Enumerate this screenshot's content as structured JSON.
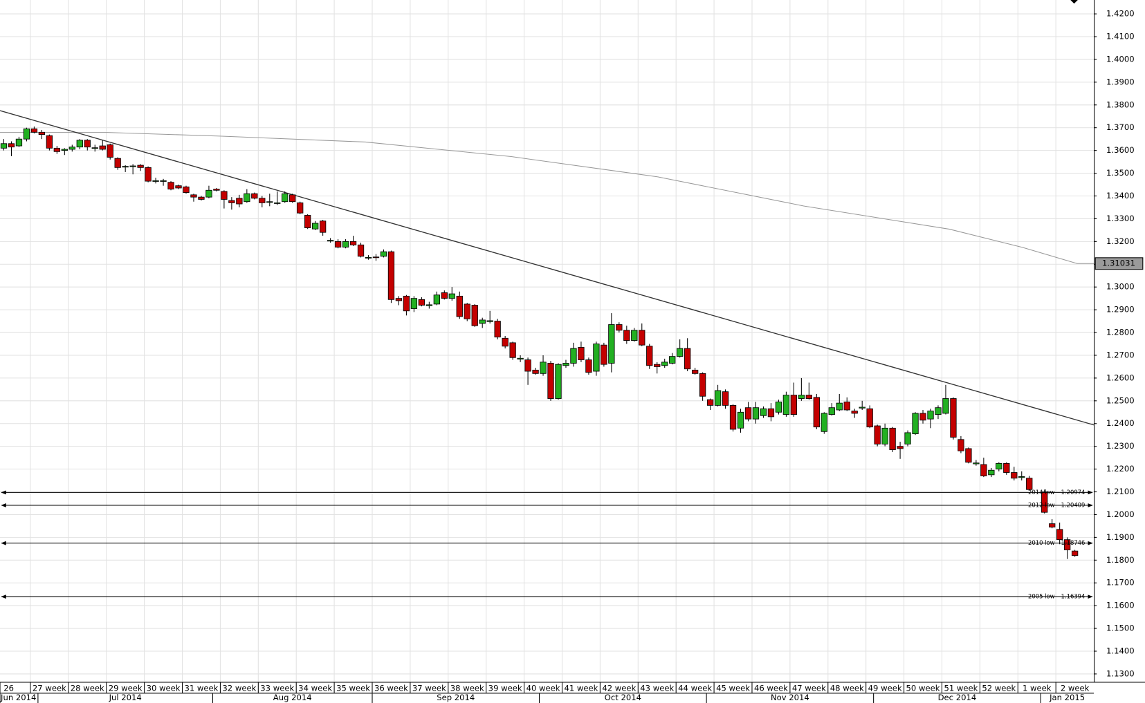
{
  "chart_data": {
    "type": "candlestick",
    "up_color": "#22b022",
    "down_color": "#c40000",
    "grid": true,
    "xlim": [
      -0.5,
      143.5
    ],
    "ylim": [
      1.1265,
      1.4261
    ],
    "yticks": [
      {
        "value": 1.13,
        "label": "1.1300"
      },
      {
        "value": 1.14,
        "label": "1.1400"
      },
      {
        "value": 1.15,
        "label": "1.1500"
      },
      {
        "value": 1.16,
        "label": "1.1600"
      },
      {
        "value": 1.17,
        "label": "1.1700"
      },
      {
        "value": 1.18,
        "label": "1.1800"
      },
      {
        "value": 1.19,
        "label": "1.1900"
      },
      {
        "value": 1.2,
        "label": "1.2000"
      },
      {
        "value": 1.21,
        "label": "1.2100"
      },
      {
        "value": 1.22,
        "label": "1.2200"
      },
      {
        "value": 1.23,
        "label": "1.2300"
      },
      {
        "value": 1.24,
        "label": "1.2400"
      },
      {
        "value": 1.25,
        "label": "1.2500"
      },
      {
        "value": 1.26,
        "label": "1.2600"
      },
      {
        "value": 1.27,
        "label": "1.2700"
      },
      {
        "value": 1.28,
        "label": "1.2800"
      },
      {
        "value": 1.29,
        "label": "1.2900"
      },
      {
        "value": 1.3,
        "label": "1.3000"
      },
      {
        "value": 1.31,
        "label": "1.3100"
      },
      {
        "value": 1.32,
        "label": "1.3200"
      },
      {
        "value": 1.33,
        "label": "1.3300"
      },
      {
        "value": 1.34,
        "label": "1.3400"
      },
      {
        "value": 1.35,
        "label": "1.3500"
      },
      {
        "value": 1.36,
        "label": "1.3600"
      },
      {
        "value": 1.37,
        "label": "1.3700"
      },
      {
        "value": 1.38,
        "label": "1.3800"
      },
      {
        "value": 1.39,
        "label": "1.3900"
      },
      {
        "value": 1.4,
        "label": "1.4000"
      },
      {
        "value": 1.41,
        "label": "1.4100"
      },
      {
        "value": 1.42,
        "label": "1.4200"
      }
    ],
    "xticks": [
      {
        "value": -0.5,
        "label": "26"
      },
      {
        "value": 3.5,
        "label": "27 week"
      },
      {
        "value": 8.5,
        "label": "28 week"
      },
      {
        "value": 13.5,
        "label": "29 week"
      },
      {
        "value": 18.5,
        "label": "30 week"
      },
      {
        "value": 23.5,
        "label": "31 week"
      },
      {
        "value": 28.5,
        "label": "32 week"
      },
      {
        "value": 33.5,
        "label": "33 week"
      },
      {
        "value": 38.5,
        "label": "34 week"
      },
      {
        "value": 43.5,
        "label": "35 week"
      },
      {
        "value": 48.5,
        "label": "36 week"
      },
      {
        "value": 53.5,
        "label": "37 week"
      },
      {
        "value": 58.5,
        "label": "38 week"
      },
      {
        "value": 63.5,
        "label": "39 week"
      },
      {
        "value": 68.5,
        "label": "40 week"
      },
      {
        "value": 73.5,
        "label": "41 week"
      },
      {
        "value": 78.5,
        "label": "42 week"
      },
      {
        "value": 83.5,
        "label": "43 week"
      },
      {
        "value": 88.5,
        "label": "44 week"
      },
      {
        "value": 93.5,
        "label": "45 week"
      },
      {
        "value": 98.5,
        "label": "46 week"
      },
      {
        "value": 103.5,
        "label": "47 week"
      },
      {
        "value": 108.5,
        "label": "48 week"
      },
      {
        "value": 113.5,
        "label": "49 week"
      },
      {
        "value": 118.5,
        "label": "50 week"
      },
      {
        "value": 123.5,
        "label": "51 week"
      },
      {
        "value": 128.5,
        "label": "52 week"
      },
      {
        "value": 133.5,
        "label": "1 week"
      },
      {
        "value": 138.5,
        "label": "2 week"
      }
    ],
    "x_month_ticks": [
      {
        "value": -0.5,
        "label": "Jun 2014"
      },
      {
        "value": 4.5,
        "label": "Jul 2014"
      },
      {
        "value": 27.5,
        "label": "Aug 2014"
      },
      {
        "value": 48.5,
        "label": "Sep 2014"
      },
      {
        "value": 70.5,
        "label": "Oct 2014"
      },
      {
        "value": 92.5,
        "label": "Nov 2014"
      },
      {
        "value": 114.5,
        "label": "Dec 2014"
      },
      {
        "value": 136.5,
        "label": "Jan 2015"
      }
    ],
    "x": [
      0,
      1,
      2,
      3,
      4,
      5,
      6,
      7,
      8,
      9,
      10,
      11,
      12,
      13,
      14,
      15,
      16,
      17,
      18,
      19,
      20,
      21,
      22,
      23,
      24,
      25,
      26,
      27,
      28,
      29,
      30,
      31,
      32,
      33,
      34,
      35,
      36,
      37,
      38,
      39,
      40,
      41,
      42,
      43,
      44,
      45,
      46,
      47,
      48,
      49,
      50,
      51,
      52,
      53,
      54,
      55,
      56,
      57,
      58,
      59,
      60,
      61,
      62,
      63,
      64,
      65,
      66,
      67,
      68,
      69,
      70,
      71,
      72,
      73,
      74,
      75,
      76,
      77,
      78,
      79,
      80,
      81,
      82,
      83,
      84,
      85,
      86,
      87,
      88,
      89,
      90,
      91,
      92,
      93,
      94,
      95,
      96,
      97,
      98,
      99,
      100,
      101,
      102,
      103,
      104,
      105,
      106,
      107,
      108,
      109,
      110,
      111,
      112,
      113,
      114,
      115,
      116,
      117,
      118,
      119,
      120,
      121,
      122,
      123,
      124,
      125,
      126,
      127,
      128,
      129,
      130,
      131,
      132,
      133,
      134,
      135,
      137,
      138,
      139,
      140,
      141
    ],
    "ohlc": [
      [
        1.361,
        1.365,
        1.36,
        1.363
      ],
      [
        1.363,
        1.364,
        1.3575,
        1.3615
      ],
      [
        1.362,
        1.366,
        1.3615,
        1.365
      ],
      [
        1.365,
        1.37,
        1.364,
        1.3695
      ],
      [
        1.3695,
        1.3705,
        1.3675,
        1.368
      ],
      [
        1.368,
        1.369,
        1.365,
        1.367
      ],
      [
        1.3665,
        1.367,
        1.36,
        1.361
      ],
      [
        1.361,
        1.362,
        1.3585,
        1.3595
      ],
      [
        1.36,
        1.361,
        1.358,
        1.3605
      ],
      [
        1.3605,
        1.3625,
        1.3595,
        1.3615
      ],
      [
        1.3615,
        1.365,
        1.3605,
        1.3645
      ],
      [
        1.3645,
        1.365,
        1.36,
        1.3615
      ],
      [
        1.361,
        1.3625,
        1.3595,
        1.3612
      ],
      [
        1.362,
        1.3645,
        1.36,
        1.3605
      ],
      [
        1.3625,
        1.363,
        1.356,
        1.357
      ],
      [
        1.3565,
        1.357,
        1.3515,
        1.3525
      ],
      [
        1.3528,
        1.3535,
        1.3505,
        1.353
      ],
      [
        1.353,
        1.354,
        1.3495,
        1.3532
      ],
      [
        1.3535,
        1.354,
        1.351,
        1.3525
      ],
      [
        1.3525,
        1.353,
        1.346,
        1.3465
      ],
      [
        1.3465,
        1.348,
        1.3455,
        1.3467
      ],
      [
        1.3465,
        1.3475,
        1.3445,
        1.3467
      ],
      [
        1.346,
        1.3465,
        1.3425,
        1.343
      ],
      [
        1.3445,
        1.345,
        1.343,
        1.3435
      ],
      [
        1.344,
        1.3445,
        1.341,
        1.3415
      ],
      [
        1.3405,
        1.341,
        1.3375,
        1.3395
      ],
      [
        1.3395,
        1.34,
        1.338,
        1.3385
      ],
      [
        1.3395,
        1.3445,
        1.339,
        1.3425
      ],
      [
        1.343,
        1.3435,
        1.342,
        1.3425
      ],
      [
        1.342,
        1.3425,
        1.3345,
        1.3385
      ],
      [
        1.338,
        1.3395,
        1.334,
        1.337
      ],
      [
        1.339,
        1.3405,
        1.335,
        1.3365
      ],
      [
        1.3375,
        1.343,
        1.337,
        1.341
      ],
      [
        1.341,
        1.3415,
        1.3385,
        1.339
      ],
      [
        1.339,
        1.34,
        1.335,
        1.337
      ],
      [
        1.3373,
        1.341,
        1.3355,
        1.3375
      ],
      [
        1.3368,
        1.342,
        1.336,
        1.337
      ],
      [
        1.3375,
        1.342,
        1.337,
        1.341
      ],
      [
        1.3405,
        1.341,
        1.337,
        1.3375
      ],
      [
        1.337,
        1.3375,
        1.332,
        1.3325
      ],
      [
        1.3315,
        1.332,
        1.3255,
        1.326
      ],
      [
        1.3255,
        1.329,
        1.325,
        1.328
      ],
      [
        1.329,
        1.3295,
        1.3225,
        1.324
      ],
      [
        1.3203,
        1.3215,
        1.3195,
        1.3205
      ],
      [
        1.32,
        1.321,
        1.317,
        1.3175
      ],
      [
        1.3175,
        1.321,
        1.317,
        1.32
      ],
      [
        1.32,
        1.3225,
        1.318,
        1.3185
      ],
      [
        1.3185,
        1.3195,
        1.313,
        1.3135
      ],
      [
        1.3128,
        1.314,
        1.312,
        1.313
      ],
      [
        1.3132,
        1.3145,
        1.3115,
        1.313
      ],
      [
        1.3135,
        1.3165,
        1.313,
        1.3155
      ],
      [
        1.3155,
        1.316,
        1.293,
        1.2945
      ],
      [
        1.295,
        1.296,
        1.292,
        1.294
      ],
      [
        1.296,
        1.2965,
        1.2875,
        1.2895
      ],
      [
        1.2905,
        1.296,
        1.289,
        1.295
      ],
      [
        1.2945,
        1.2955,
        1.2915,
        1.292
      ],
      [
        1.2918,
        1.2935,
        1.2905,
        1.2922
      ],
      [
        1.2925,
        1.298,
        1.292,
        1.2965
      ],
      [
        1.2975,
        1.2985,
        1.2945,
        1.295
      ],
      [
        1.295,
        1.3,
        1.294,
        1.297
      ],
      [
        1.296,
        1.298,
        1.286,
        1.287
      ],
      [
        1.2925,
        1.293,
        1.285,
        1.286
      ],
      [
        1.292,
        1.2925,
        1.2825,
        1.283
      ],
      [
        1.284,
        1.2865,
        1.282,
        1.2855
      ],
      [
        1.2848,
        1.2895,
        1.284,
        1.2852
      ],
      [
        1.285,
        1.286,
        1.277,
        1.278
      ],
      [
        1.2775,
        1.2785,
        1.273,
        1.274
      ],
      [
        1.2755,
        1.276,
        1.268,
        1.269
      ],
      [
        1.2683,
        1.27,
        1.267,
        1.2687
      ],
      [
        1.268,
        1.269,
        1.257,
        1.263
      ],
      [
        1.2635,
        1.2645,
        1.2615,
        1.262
      ],
      [
        1.262,
        1.27,
        1.261,
        1.267
      ],
      [
        1.2665,
        1.2675,
        1.25,
        1.251
      ],
      [
        1.251,
        1.2665,
        1.2505,
        1.266
      ],
      [
        1.2655,
        1.268,
        1.2645,
        1.2665
      ],
      [
        1.2665,
        1.2755,
        1.265,
        1.273
      ],
      [
        1.2735,
        1.276,
        1.267,
        1.268
      ],
      [
        1.268,
        1.269,
        1.2615,
        1.2625
      ],
      [
        1.263,
        1.276,
        1.261,
        1.275
      ],
      [
        1.2745,
        1.2755,
        1.265,
        1.266
      ],
      [
        1.2665,
        1.2885,
        1.2625,
        1.2835
      ],
      [
        1.2835,
        1.2845,
        1.28,
        1.281
      ],
      [
        1.281,
        1.283,
        1.275,
        1.2765
      ],
      [
        1.2765,
        1.282,
        1.276,
        1.281
      ],
      [
        1.281,
        1.284,
        1.274,
        1.2745
      ],
      [
        1.274,
        1.275,
        1.264,
        1.2655
      ],
      [
        1.266,
        1.267,
        1.262,
        1.265
      ],
      [
        1.2655,
        1.2685,
        1.2645,
        1.267
      ],
      [
        1.2665,
        1.271,
        1.266,
        1.2695
      ],
      [
        1.2695,
        1.277,
        1.269,
        1.273
      ],
      [
        1.273,
        1.2775,
        1.263,
        1.264
      ],
      [
        1.2635,
        1.2645,
        1.2615,
        1.262
      ],
      [
        1.262,
        1.2625,
        1.25,
        1.252
      ],
      [
        1.2505,
        1.251,
        1.246,
        1.248
      ],
      [
        1.248,
        1.257,
        1.2475,
        1.2545
      ],
      [
        1.254,
        1.255,
        1.2465,
        1.248
      ],
      [
        1.248,
        1.2485,
        1.2365,
        1.2375
      ],
      [
        1.238,
        1.2465,
        1.236,
        1.245
      ],
      [
        1.247,
        1.2495,
        1.241,
        1.242
      ],
      [
        1.242,
        1.2495,
        1.24,
        1.247
      ],
      [
        1.2435,
        1.2475,
        1.2425,
        1.2465
      ],
      [
        1.2465,
        1.249,
        1.241,
        1.243
      ],
      [
        1.245,
        1.2505,
        1.244,
        1.2495
      ],
      [
        1.244,
        1.254,
        1.243,
        1.2525
      ],
      [
        1.2525,
        1.258,
        1.243,
        1.244
      ],
      [
        1.251,
        1.26,
        1.25,
        1.2525
      ],
      [
        1.2525,
        1.258,
        1.2505,
        1.251
      ],
      [
        1.2515,
        1.253,
        1.2375,
        1.2385
      ],
      [
        1.2365,
        1.245,
        1.2355,
        1.2445
      ],
      [
        1.244,
        1.249,
        1.2435,
        1.247
      ],
      [
        1.246,
        1.253,
        1.2455,
        1.249
      ],
      [
        1.2495,
        1.2515,
        1.2455,
        1.246
      ],
      [
        1.2455,
        1.2465,
        1.2425,
        1.2445
      ],
      [
        1.2468,
        1.25,
        1.246,
        1.2472
      ],
      [
        1.2465,
        1.248,
        1.238,
        1.2385
      ],
      [
        1.239,
        1.2395,
        1.23,
        1.231
      ],
      [
        1.231,
        1.24,
        1.23,
        1.238
      ],
      [
        1.238,
        1.2385,
        1.2275,
        1.2285
      ],
      [
        1.23,
        1.232,
        1.2245,
        1.229
      ],
      [
        1.231,
        1.237,
        1.23,
        1.236
      ],
      [
        1.2355,
        1.245,
        1.235,
        1.2445
      ],
      [
        1.2445,
        1.246,
        1.24,
        1.2415
      ],
      [
        1.242,
        1.2465,
        1.238,
        1.2455
      ],
      [
        1.244,
        1.248,
        1.242,
        1.247
      ],
      [
        1.2445,
        1.257,
        1.244,
        1.251
      ],
      [
        1.251,
        1.2515,
        1.233,
        1.234
      ],
      [
        1.233,
        1.2345,
        1.227,
        1.228
      ],
      [
        1.229,
        1.2295,
        1.2225,
        1.223
      ],
      [
        1.2223,
        1.224,
        1.2215,
        1.2227
      ],
      [
        1.222,
        1.225,
        1.2165,
        1.217
      ],
      [
        1.2175,
        1.2205,
        1.2165,
        1.2195
      ],
      [
        1.22,
        1.223,
        1.219,
        1.2225
      ],
      [
        1.2225,
        1.223,
        1.2175,
        1.2185
      ],
      [
        1.2185,
        1.221,
        1.215,
        1.216
      ],
      [
        1.2163,
        1.219,
        1.215,
        1.2167
      ],
      [
        1.216,
        1.217,
        1.2105,
        1.211
      ],
      [
        1.21,
        1.211,
        1.2005,
        1.201
      ],
      [
        1.196,
        1.198,
        1.194,
        1.1945
      ],
      [
        1.1935,
        1.1965,
        1.187,
        1.189
      ],
      [
        1.189,
        1.19,
        1.1805,
        1.1845
      ],
      [
        1.184,
        1.1845,
        1.1815,
        1.182
      ]
    ],
    "trendline": {
      "color": "#333333",
      "x": [
        -0.5,
        143.5
      ],
      "y": [
        1.3775,
        1.2394
      ]
    },
    "moving_average": {
      "color": "#999999",
      "x": [
        -0.5,
        13.65,
        28.4,
        47.6,
        66.8,
        86.1,
        105.3,
        124.5,
        134.1,
        141.3,
        143.5
      ],
      "y": [
        1.3679,
        1.3679,
        1.3663,
        1.3637,
        1.3573,
        1.3484,
        1.3356,
        1.3254,
        1.3174,
        1.3103,
        1.3103
      ],
      "last_value": 1.31031
    },
    "levels": [
      {
        "name": "2014 low",
        "value": 1.20974
      },
      {
        "name": "2012 low",
        "value": 1.20409
      },
      {
        "name": "2010 low",
        "value": 1.18746
      },
      {
        "name": "2005 low",
        "value": 1.16394
      }
    ]
  }
}
